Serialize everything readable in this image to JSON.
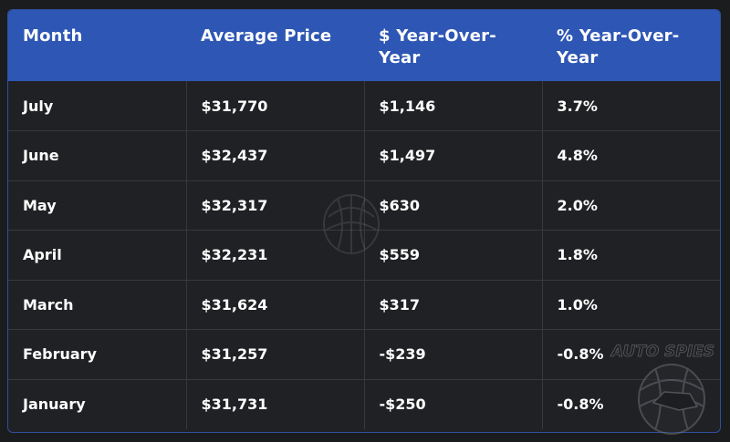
{
  "table": {
    "headers": [
      "Month",
      "Average Price",
      "$ Year-Over-Year",
      "% Year-Over-Year"
    ],
    "rows": [
      [
        "July",
        "$31,770",
        "$1,146",
        "3.7%"
      ],
      [
        "June",
        "$32,437",
        "$1,497",
        "4.8%"
      ],
      [
        "May",
        "$32,317",
        "$630",
        "2.0%"
      ],
      [
        "April",
        "$32,231",
        "$559",
        "1.8%"
      ],
      [
        "March",
        "$31,624",
        "$317",
        "1.0%"
      ],
      [
        "February",
        "$31,257",
        "-$239",
        "-0.8%"
      ],
      [
        "January",
        "$31,731",
        "-$250",
        "-0.8%"
      ]
    ]
  },
  "watermark": {
    "text": "AUTO SPIES",
    "icon": "globe-logo-icon"
  },
  "colors": {
    "header_bg": "#2e56b4",
    "body_bg": "#202124",
    "border": "#37393d",
    "text": "#ffffff"
  }
}
